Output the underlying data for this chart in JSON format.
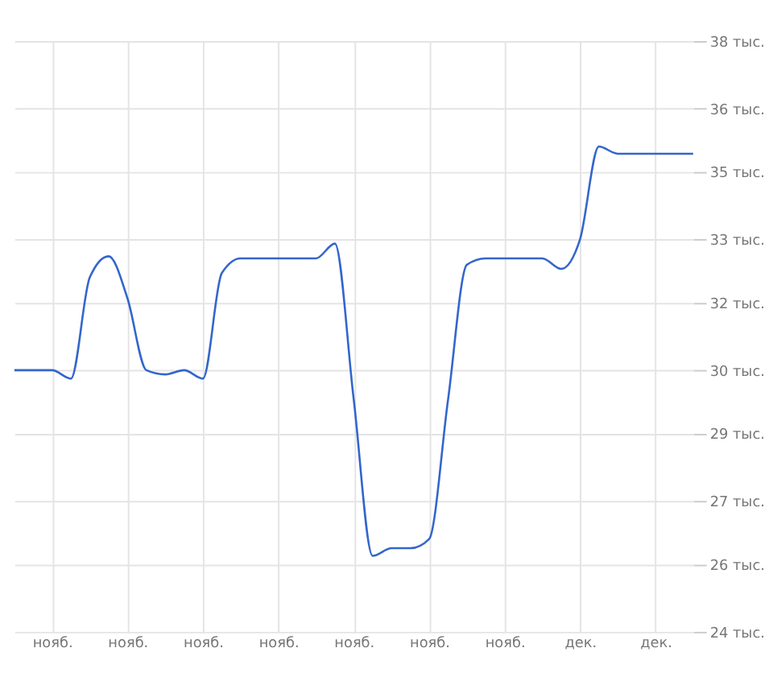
{
  "chart_data": {
    "type": "line",
    "categories": [
      null,
      null,
      "нояб.",
      null,
      null,
      null,
      "нояб.",
      null,
      null,
      null,
      "нояб.",
      null,
      null,
      null,
      "нояб.",
      null,
      null,
      null,
      "нояб.",
      null,
      null,
      null,
      "нояб.",
      null,
      null,
      null,
      "нояб.",
      null,
      null,
      null,
      "дек.",
      null,
      null,
      null,
      "дек.",
      null,
      null
    ],
    "series": [
      {
        "color": "#3366cc",
        "values": [
          30.2,
          30.2,
          30.2,
          30.0,
          32.4,
          32.9,
          31.9,
          30.2,
          30.1,
          30.2,
          30.0,
          32.5,
          32.85,
          32.85,
          32.85,
          32.85,
          32.85,
          33.2,
          29.5,
          25.8,
          25.98,
          25.98,
          26.2,
          29.5,
          32.7,
          32.85,
          32.85,
          32.85,
          32.85,
          32.6,
          33.3,
          35.5,
          35.33,
          35.33,
          35.33,
          35.33,
          35.33
        ]
      }
    ],
    "ylim": [
      24,
      38
    ],
    "yticks": [
      {
        "value": 24,
        "label": "24 тыс."
      },
      {
        "value": 25.6,
        "label": "26 тыс."
      },
      {
        "value": 27.1,
        "label": "27 тыс."
      },
      {
        "value": 28.7,
        "label": "29 тыс."
      },
      {
        "value": 30.2,
        "label": "30 тыс."
      },
      {
        "value": 31.8,
        "label": "32 тыс."
      },
      {
        "value": 33.3,
        "label": "33 тыс."
      },
      {
        "value": 34.9,
        "label": "35 тыс."
      },
      {
        "value": 36.4,
        "label": "36 тыс."
      },
      {
        "value": 38,
        "label": "38 тыс."
      }
    ],
    "grid": true,
    "line_style": "solid"
  }
}
